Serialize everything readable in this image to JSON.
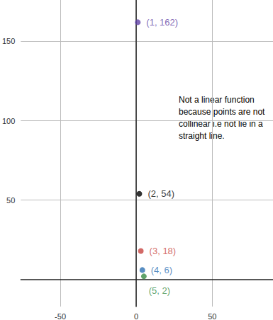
{
  "chart_data": {
    "type": "scatter",
    "x": [
      1,
      2,
      3,
      4,
      5
    ],
    "values": [
      162,
      54,
      18,
      6,
      2
    ],
    "value_labels": [
      "(1, 162)",
      "(2, 54)",
      "(3, 18)",
      "(4, 6)",
      "(5, 2)"
    ],
    "colors": [
      "#6042a6",
      "#000000",
      "#c74440",
      "#2d70b3",
      "#388c46"
    ],
    "data_labels": true,
    "xlim": [
      -76,
      90
    ],
    "ylim": [
      -17,
      176
    ],
    "xticks": [
      -50,
      0,
      50
    ],
    "yticks": [
      50,
      100,
      150
    ],
    "grid": true,
    "annotation": "Not a linear function because points are not collinear i.e not lie in a straight line."
  }
}
